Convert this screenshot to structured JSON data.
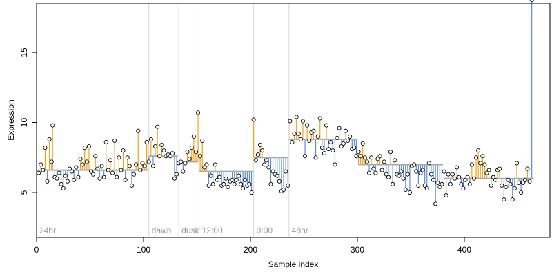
{
  "chart_data": {
    "type": "scatter",
    "title": "",
    "xlabel": "Sample index",
    "ylabel": "Expression",
    "xlim": [
      0,
      480
    ],
    "ylim": [
      1.8,
      18.5
    ],
    "x_ticks": [
      0,
      100,
      200,
      300,
      400
    ],
    "y_ticks": [
      5,
      10,
      15
    ],
    "grid": false,
    "legend": "none",
    "colors": {
      "up_segment": "#f2a31b",
      "down_segment": "#5b8fd6",
      "fit_line": "#a9a9a9",
      "region_line": "#d9d9d9",
      "point_edge": "#000000",
      "point_fill": "#ffffff"
    },
    "regions": [
      {
        "label": "24hr",
        "start": 0
      },
      {
        "label": "dawn",
        "start": 105
      },
      {
        "label": "dusk",
        "start": 133
      },
      {
        "label": "12:00",
        "start": 152
      },
      {
        "label": "0:00",
        "start": 203
      },
      {
        "label": "48hr",
        "start": 236
      }
    ],
    "fit_levels": [
      {
        "start": 1,
        "end": 104,
        "y": 6.6
      },
      {
        "start": 105,
        "end": 132,
        "y": 7.6
      },
      {
        "start": 133,
        "end": 151,
        "y": 7.2
      },
      {
        "start": 152,
        "end": 202,
        "y": 6.5
      },
      {
        "start": 203,
        "end": 235,
        "y": 7.5
      },
      {
        "start": 236,
        "end": 300,
        "y": 8.8
      },
      {
        "start": 301,
        "end": 380,
        "y": 7.0
      },
      {
        "start": 381,
        "end": 465,
        "y": 6.0
      }
    ],
    "series": [
      {
        "points_x": [
          2,
          4,
          6,
          8,
          10,
          12,
          14,
          15,
          17,
          19,
          21,
          23,
          25,
          27,
          29,
          31,
          33,
          35,
          37,
          39,
          41,
          43,
          45,
          47,
          49,
          51,
          53,
          55,
          57,
          59,
          61,
          63,
          65,
          67,
          69,
          71,
          73,
          75,
          77,
          79,
          81,
          83,
          85,
          87,
          89,
          91,
          93,
          95,
          97,
          99,
          101,
          103,
          105,
          107,
          109,
          111,
          113,
          115,
          117,
          119,
          121,
          123,
          125,
          127,
          129,
          131,
          133,
          135,
          137,
          139,
          141,
          143,
          145,
          147,
          149,
          151,
          153,
          155,
          157,
          159,
          161,
          163,
          165,
          167,
          169,
          171,
          173,
          175,
          177,
          179,
          181,
          183,
          185,
          187,
          189,
          191,
          193,
          195,
          197,
          199,
          201,
          203,
          205,
          207,
          209,
          211,
          213,
          215,
          217,
          219,
          221,
          223,
          225,
          227,
          229,
          231,
          233,
          235,
          237,
          239,
          241,
          243,
          245,
          247,
          249,
          251,
          253,
          255,
          257,
          259,
          261,
          263,
          265,
          267,
          269,
          271,
          273,
          275,
          277,
          279,
          281,
          283,
          285,
          287,
          289,
          291,
          293,
          295,
          297,
          299,
          301,
          303,
          305,
          307,
          309,
          311,
          313,
          315,
          317,
          319,
          321,
          323,
          325,
          327,
          329,
          331,
          333,
          335,
          337,
          339,
          341,
          343,
          345,
          347,
          349,
          351,
          353,
          355,
          357,
          359,
          361,
          363,
          365,
          367,
          369,
          371,
          373,
          375,
          377,
          379,
          381,
          383,
          385,
          387,
          389,
          391,
          393,
          395,
          397,
          399,
          401,
          403,
          405,
          407,
          409,
          411,
          413,
          415,
          417,
          419,
          421,
          423,
          425,
          427,
          429,
          431,
          433,
          435,
          437,
          439,
          441,
          443,
          445,
          447,
          449,
          451,
          453,
          455,
          457,
          459,
          461,
          463
        ],
        "points_y": [
          6.4,
          7.0,
          6.6,
          8.2,
          5.8,
          8.8,
          7.2,
          9.8,
          6.1,
          6.0,
          6.4,
          5.6,
          5.3,
          6.2,
          5.8,
          6.7,
          6.5,
          5.9,
          6.8,
          6.1,
          7.4,
          7.0,
          8.2,
          7.2,
          8.3,
          6.5,
          6.3,
          7.6,
          6.7,
          6.0,
          6.9,
          6.1,
          8.6,
          6.6,
          7.3,
          6.4,
          8.7,
          6.1,
          7.5,
          6.6,
          8.0,
          5.9,
          7.5,
          6.9,
          5.5,
          6.3,
          7.0,
          9.4,
          6.6,
          7.1,
          6.9,
          8.6,
          7.2,
          8.8,
          6.9,
          8.3,
          9.7,
          7.6,
          8.4,
          8.0,
          7.6,
          7.7,
          7.6,
          7.8,
          6.0,
          6.3,
          7.1,
          7.2,
          6.5,
          7.1,
          7.9,
          7.4,
          8.2,
          9.0,
          7.9,
          10.7,
          7.6,
          8.7,
          6.8,
          7.0,
          5.5,
          6.2,
          5.6,
          7.0,
          5.9,
          6.1,
          5.5,
          5.6,
          6.0,
          5.4,
          5.8,
          5.9,
          5.6,
          5.9,
          6.2,
          5.6,
          5.3,
          5.9,
          5.5,
          5.6,
          5.0,
          10.2,
          7.3,
          7.7,
          8.4,
          8.0,
          7.0,
          7.3,
          6.8,
          5.6,
          6.5,
          6.3,
          6.2,
          5.8,
          5.1,
          5.2,
          6.5,
          5.5,
          10.1,
          8.6,
          9.2,
          10.4,
          9.2,
          8.8,
          10.1,
          7.6,
          9.8,
          8.7,
          9.3,
          9.4,
          7.5,
          9.0,
          10.3,
          8.2,
          7.8,
          9.8,
          8.1,
          8.6,
          8.0,
          7.0,
          8.9,
          9.6,
          8.3,
          8.5,
          9.4,
          8.7,
          9.0,
          8.1,
          8.2,
          7.6,
          7.9,
          7.6,
          8.5,
          7.5,
          7.2,
          6.4,
          7.5,
          6.7,
          6.4,
          7.4,
          7.6,
          6.6,
          7.2,
          6.3,
          6.1,
          7.9,
          5.6,
          7.3,
          6.3,
          6.2,
          6.5,
          6.0,
          5.2,
          6.3,
          5.0,
          6.9,
          7.0,
          6.5,
          5.5,
          6.4,
          6.6,
          5.5,
          5.3,
          7.1,
          6.3,
          5.9,
          4.2,
          5.7,
          5.4,
          5.6,
          6.5,
          4.8,
          6.3,
          5.6,
          6.3,
          6.0,
          6.8,
          6.1,
          5.6,
          5.3,
          5.9,
          6.1,
          5.6,
          7.0,
          6.0,
          7.5,
          8.0,
          7.1,
          7.6,
          7.0,
          6.4,
          6.6,
          5.5,
          6.1,
          5.9,
          6.6,
          6.7,
          5.5,
          4.5,
          5.4,
          5.9,
          5.6,
          4.5,
          5.3,
          7.1,
          5.7,
          5.0,
          5.7,
          5.9,
          6.7,
          5.8
        ]
      }
    ]
  }
}
